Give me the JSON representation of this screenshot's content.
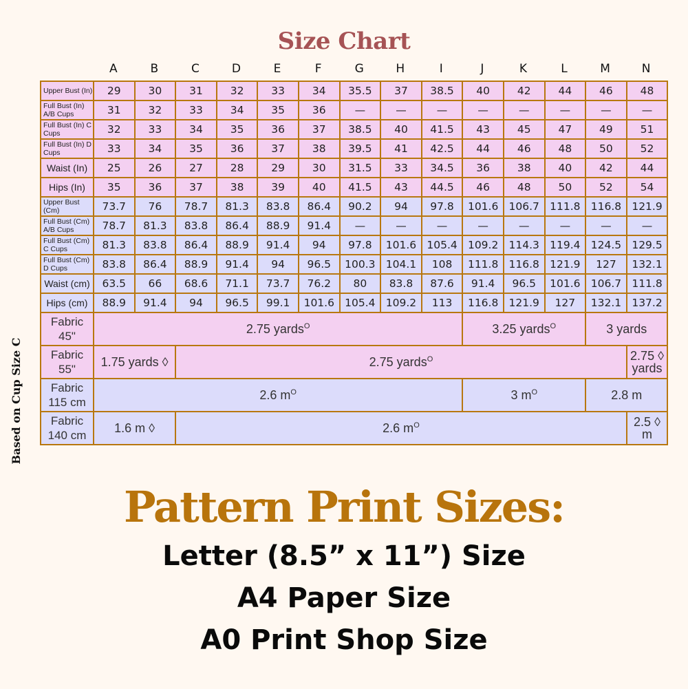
{
  "title": "Size Chart",
  "side_note": "Based on Cup Size C",
  "sizes": [
    "A",
    "B",
    "C",
    "D",
    "E",
    "F",
    "G",
    "H",
    "I",
    "J",
    "K",
    "L",
    "M",
    "N"
  ],
  "colors": {
    "pink_row": "#f4d0f1",
    "blue_row": "#dcdcfb",
    "border": "#b8770f",
    "title": "#a65355",
    "heading": "#b8740c",
    "background": "#fff8f1"
  },
  "measure_rows": [
    {
      "label": "Upper Bust (In)",
      "group": "in",
      "values": [
        "29",
        "30",
        "31",
        "32",
        "33",
        "34",
        "35.5",
        "37",
        "38.5",
        "40",
        "42",
        "44",
        "46",
        "48"
      ]
    },
    {
      "label": "Full Bust (In) A/B Cups",
      "group": "in",
      "values": [
        "31",
        "32",
        "33",
        "34",
        "35",
        "36",
        "—",
        "—",
        "—",
        "—",
        "—",
        "—",
        "—",
        "—"
      ]
    },
    {
      "label": "Full Bust (In) C Cups",
      "group": "in",
      "values": [
        "32",
        "33",
        "34",
        "35",
        "36",
        "37",
        "38.5",
        "40",
        "41.5",
        "43",
        "45",
        "47",
        "49",
        "51"
      ]
    },
    {
      "label": "Full Bust (In) D Cups",
      "group": "in",
      "values": [
        "33",
        "34",
        "35",
        "36",
        "37",
        "38",
        "39.5",
        "41",
        "42.5",
        "44",
        "46",
        "48",
        "50",
        "52"
      ]
    },
    {
      "label": "Waist (In)",
      "group": "in",
      "values": [
        "25",
        "26",
        "27",
        "28",
        "29",
        "30",
        "31.5",
        "33",
        "34.5",
        "36",
        "38",
        "40",
        "42",
        "44"
      ]
    },
    {
      "label": "Hips (In)",
      "group": "in",
      "values": [
        "35",
        "36",
        "37",
        "38",
        "39",
        "40",
        "41.5",
        "43",
        "44.5",
        "46",
        "48",
        "50",
        "52",
        "54"
      ]
    },
    {
      "label": "Upper Bust (Cm)",
      "group": "cm",
      "values": [
        "73.7",
        "76",
        "78.7",
        "81.3",
        "83.8",
        "86.4",
        "90.2",
        "94",
        "97.8",
        "101.6",
        "106.7",
        "111.8",
        "116.8",
        "121.9"
      ]
    },
    {
      "label": "Full Bust (Cm) A/B Cups",
      "group": "cm",
      "values": [
        "78.7",
        "81.3",
        "83.8",
        "86.4",
        "88.9",
        "91.4",
        "—",
        "—",
        "—",
        "—",
        "—",
        "—",
        "—",
        "—"
      ]
    },
    {
      "label": "Full Bust (Cm) C Cups",
      "group": "cm",
      "values": [
        "81.3",
        "83.8",
        "86.4",
        "88.9",
        "91.4",
        "94",
        "97.8",
        "101.6",
        "105.4",
        "109.2",
        "114.3",
        "119.4",
        "124.5",
        "129.5"
      ]
    },
    {
      "label": "Full Bust (Cm) D Cups",
      "group": "cm",
      "values": [
        "83.8",
        "86.4",
        "88.9",
        "91.4",
        "94",
        "96.5",
        "100.3",
        "104.1",
        "108",
        "111.8",
        "116.8",
        "121.9",
        "127",
        "132.1"
      ]
    },
    {
      "label": "Waist (cm)",
      "group": "cm",
      "values": [
        "63.5",
        "66",
        "68.6",
        "71.1",
        "73.7",
        "76.2",
        "80",
        "83.8",
        "87.6",
        "91.4",
        "96.5",
        "101.6",
        "106.7",
        "111.8"
      ]
    },
    {
      "label": "Hips (cm)",
      "group": "cm",
      "values": [
        "88.9",
        "91.4",
        "94",
        "96.5",
        "99.1",
        "101.6",
        "105.4",
        "109.2",
        "113",
        "116.8",
        "121.9",
        "127",
        "132.1",
        "137.2"
      ]
    }
  ],
  "fabric_rows": [
    {
      "label": "Fabric 45\"",
      "group": "in",
      "cells": [
        {
          "text": "2.75 yards",
          "mark": "O",
          "sizes": "A-I",
          "span": 9
        },
        {
          "text": "3.25 yards",
          "mark": "O",
          "sizes": "J-L",
          "span": 3
        },
        {
          "text": "3 yards",
          "mark": "",
          "sizes": "M-N",
          "span": 2
        }
      ]
    },
    {
      "label": "Fabric 55\"",
      "group": "in",
      "cells": [
        {
          "text": "1.75 yards ◊",
          "mark": "",
          "sizes": "A-B",
          "span": 2
        },
        {
          "text": "2.75 yards",
          "mark": "O",
          "sizes": "C-M",
          "span": 11
        },
        {
          "text": "2.75 ◊ yards",
          "mark": "",
          "sizes": "N",
          "span": 1
        }
      ]
    },
    {
      "label": "Fabric 115 cm",
      "group": "cm",
      "cells": [
        {
          "text": "2.6 m",
          "mark": "O",
          "sizes": "A-I",
          "span": 9
        },
        {
          "text": "3 m",
          "mark": "O",
          "sizes": "J-L",
          "span": 3
        },
        {
          "text": "2.8  m",
          "mark": "",
          "sizes": "M-N",
          "span": 2
        }
      ]
    },
    {
      "label": "Fabric 140 cm",
      "group": "cm",
      "cells": [
        {
          "text": "1.6 m ◊",
          "mark": "",
          "sizes": "A-B",
          "span": 2
        },
        {
          "text": "2.6 m",
          "mark": "O",
          "sizes": "C-M",
          "span": 11
        },
        {
          "text": "2.5 ◊ m",
          "mark": "",
          "sizes": "N",
          "span": 1
        }
      ]
    }
  ],
  "print_heading": "Pattern Print Sizes:",
  "print_sizes": [
    "Letter (8.5” x 11”) Size",
    "A4 Paper Size",
    "A0 Print Shop Size"
  ]
}
